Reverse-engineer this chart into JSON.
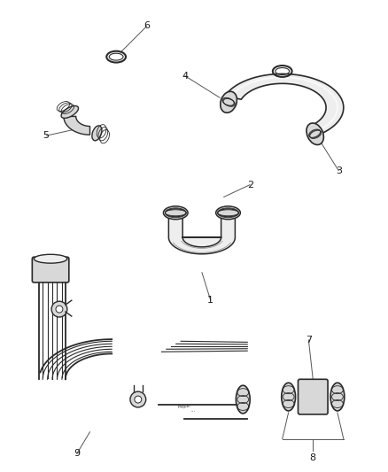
{
  "background_color": "#ffffff",
  "line_color": "#2a2a2a",
  "text_color": "#1a1a1a",
  "gray_fill": "#d8d8d8",
  "light_gray": "#eeeeee",
  "leader_color": "#555555"
}
